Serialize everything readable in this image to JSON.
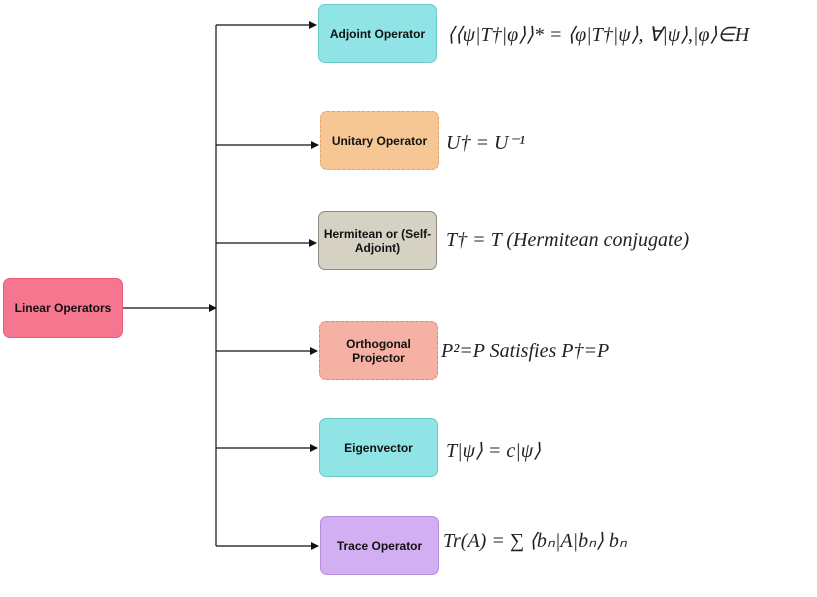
{
  "root": {
    "label": "Linear Operators",
    "color": "#f6758f"
  },
  "nodes": [
    {
      "label": "Adjoint Operator",
      "color": "#90e4e6",
      "formula_text": "⟨⟨ψ|T†|φ⟩⟩* = ⟨φ|T†|ψ⟩, ∀|ψ⟩,|φ⟩∈H"
    },
    {
      "label": "Unitary Operator",
      "color": "#f7c695",
      "formula_text": "U† = U⁻¹"
    },
    {
      "label": "Hermitean or (Self-Adjoint)",
      "color": "#d6d2c3",
      "formula_text": "T† = T (Hermitean conjugate)"
    },
    {
      "label": "Orthogonal Projector",
      "color": "#f5b1a3",
      "formula_text": "P²=P Satisfies P†=P"
    },
    {
      "label": "Eigenvector",
      "color": "#90e4e6",
      "formula_text": "T|ψ⟩ = c|ψ⟩"
    },
    {
      "label": "Trace Operator",
      "color": "#d2aef3",
      "formula_text": "Tr(A) = ∑ ⟨bₙ|A|bₙ⟩ bₙ"
    }
  ]
}
